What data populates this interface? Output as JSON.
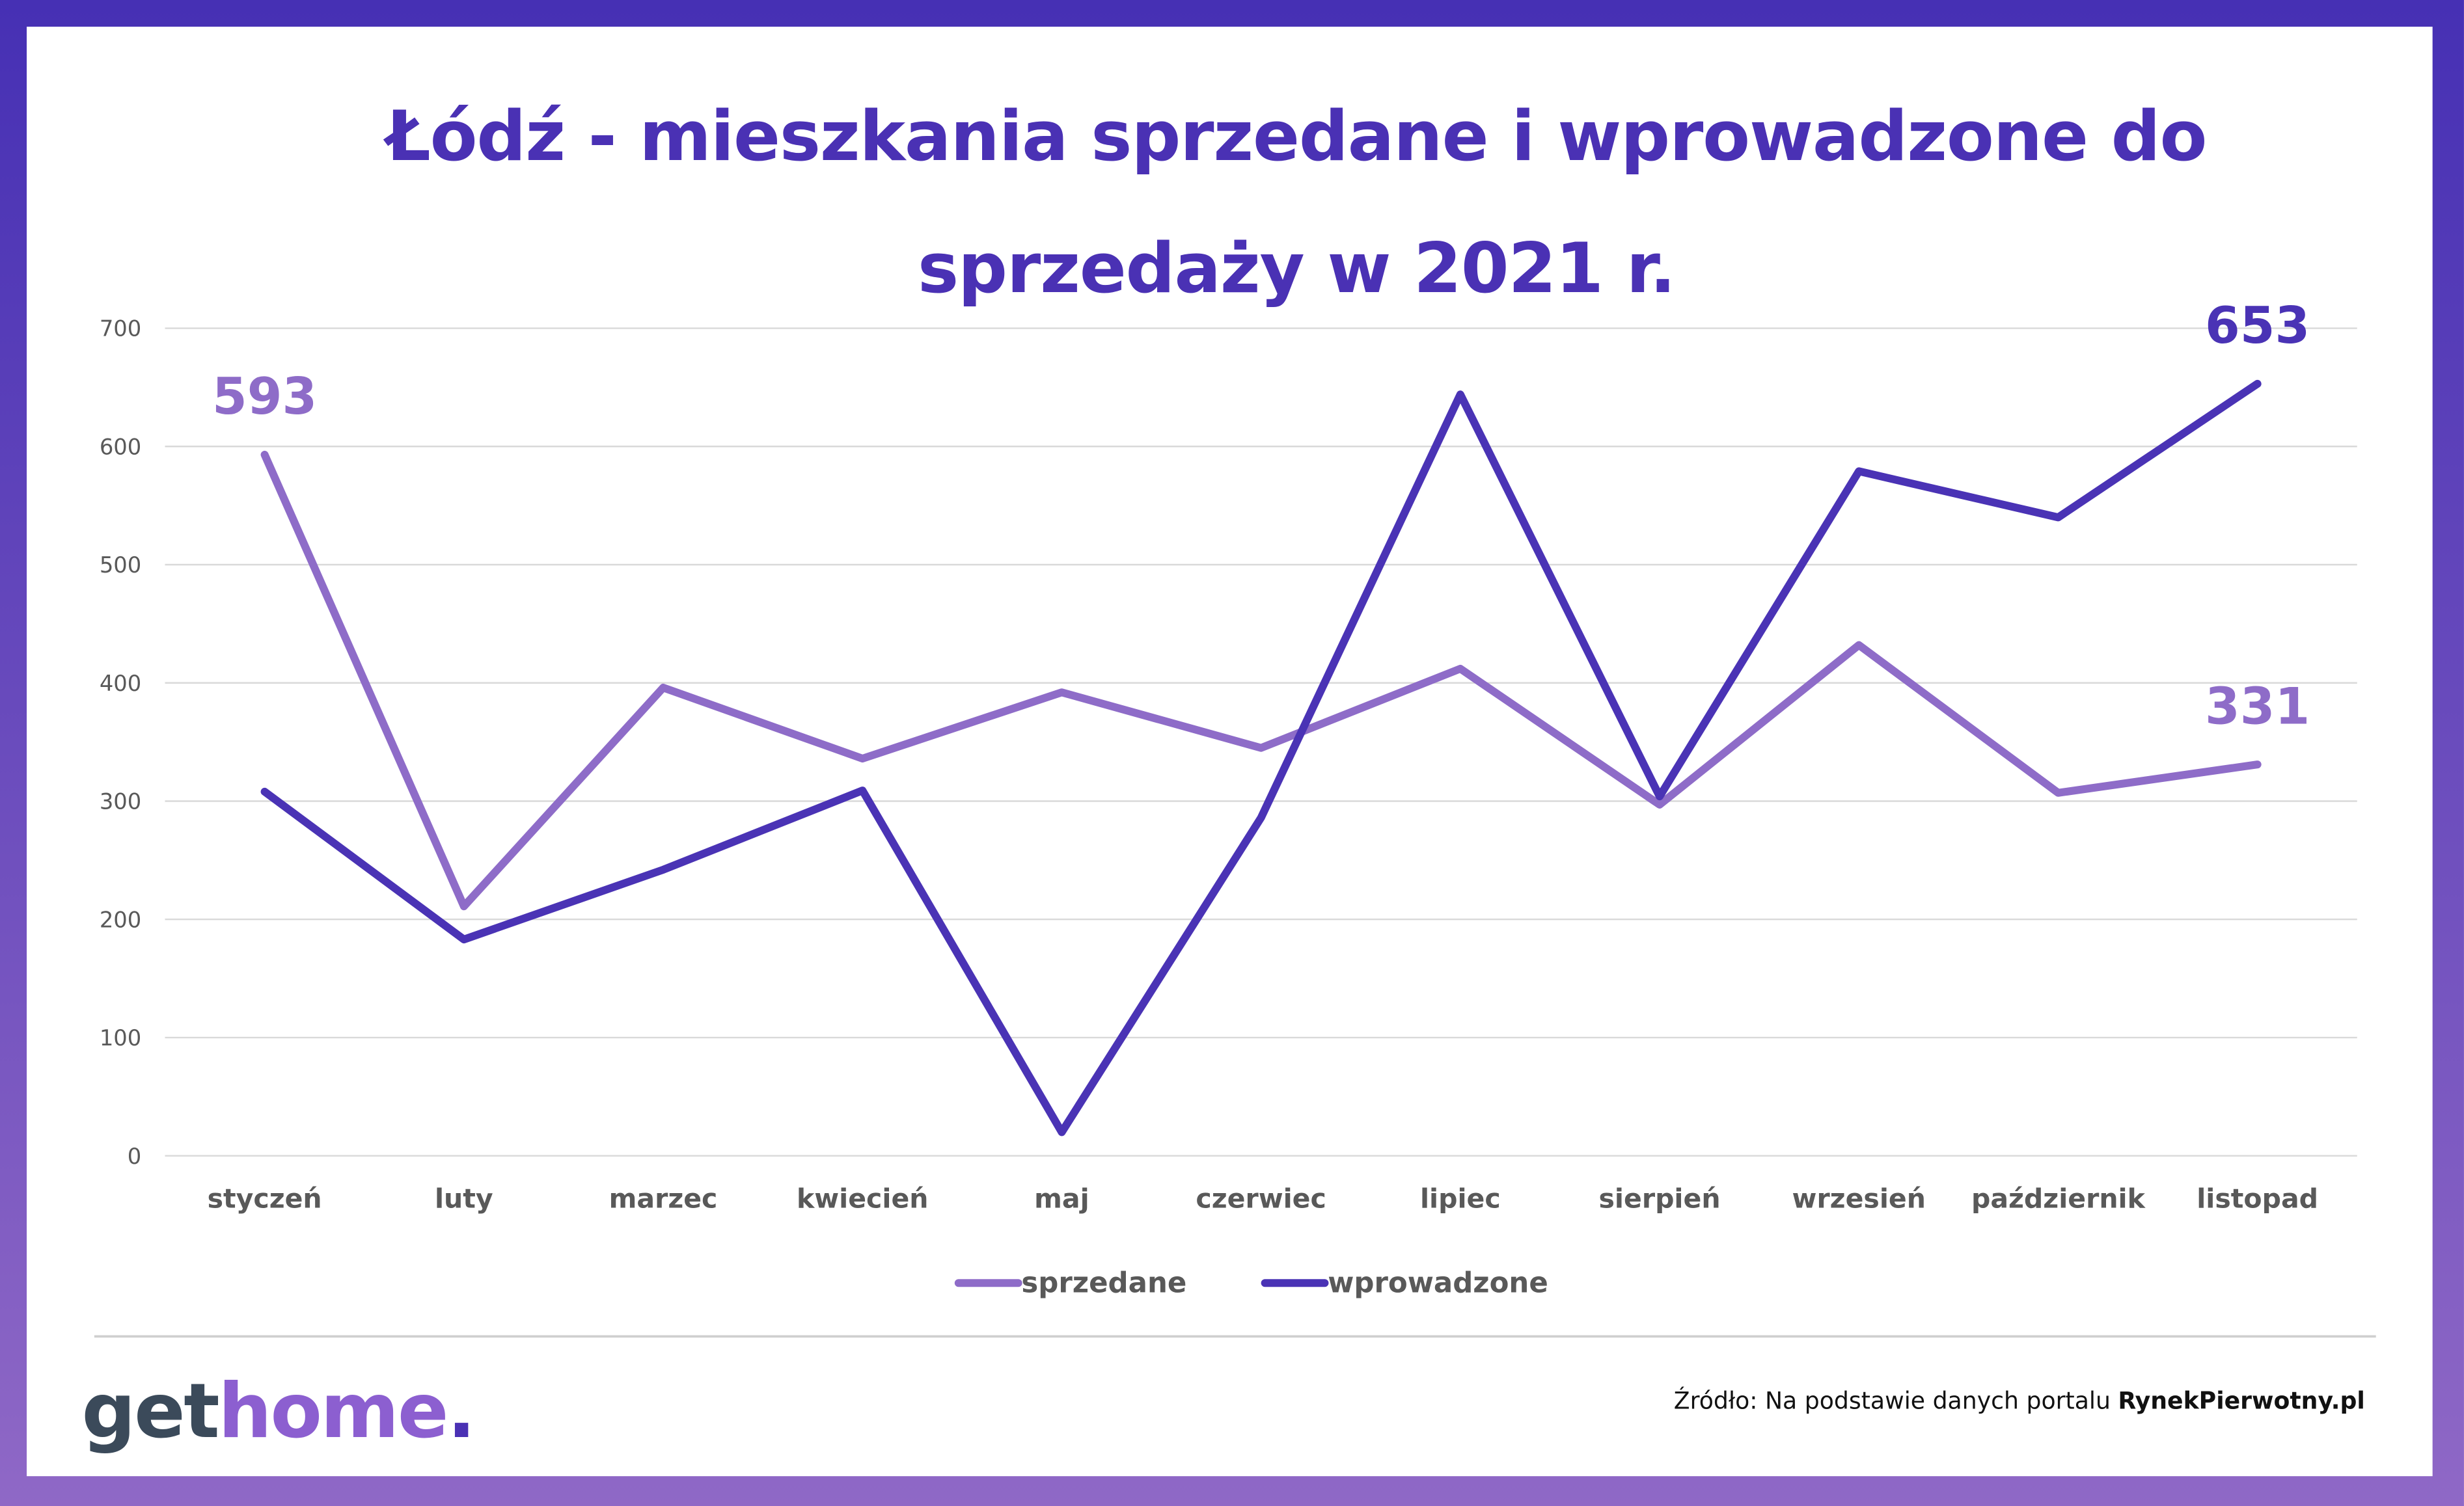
{
  "chart_data": {
    "type": "line",
    "title": "Łódź - mieszkania sprzedane i wprowadzone do sprzedaży w 2021 r.",
    "categories": [
      "styczeń",
      "luty",
      "marzec",
      "kwiecień",
      "maj",
      "czerwiec",
      "lipiec",
      "sierpień",
      "wrzesień",
      "październik",
      "listopad"
    ],
    "series": [
      {
        "name": "sprzedane",
        "color": "#8e6cc8",
        "values": [
          593,
          211,
          396,
          336,
          392,
          345,
          412,
          297,
          432,
          307,
          331
        ]
      },
      {
        "name": "wprowadzone",
        "color": "#4a33b5",
        "values": [
          308,
          183,
          242,
          309,
          20,
          286,
          644,
          304,
          579,
          540,
          653
        ]
      }
    ],
    "ylim": [
      0,
      700
    ],
    "yticks": [
      0,
      100,
      200,
      300,
      400,
      500,
      600,
      700
    ],
    "grid": true,
    "legend": "bottom"
  },
  "footer": {
    "logo": [
      "get",
      "home",
      "."
    ],
    "source": "Źródło: Na podstawie danych portalu ",
    "source_bold": "RynekPierwotny.pl"
  }
}
